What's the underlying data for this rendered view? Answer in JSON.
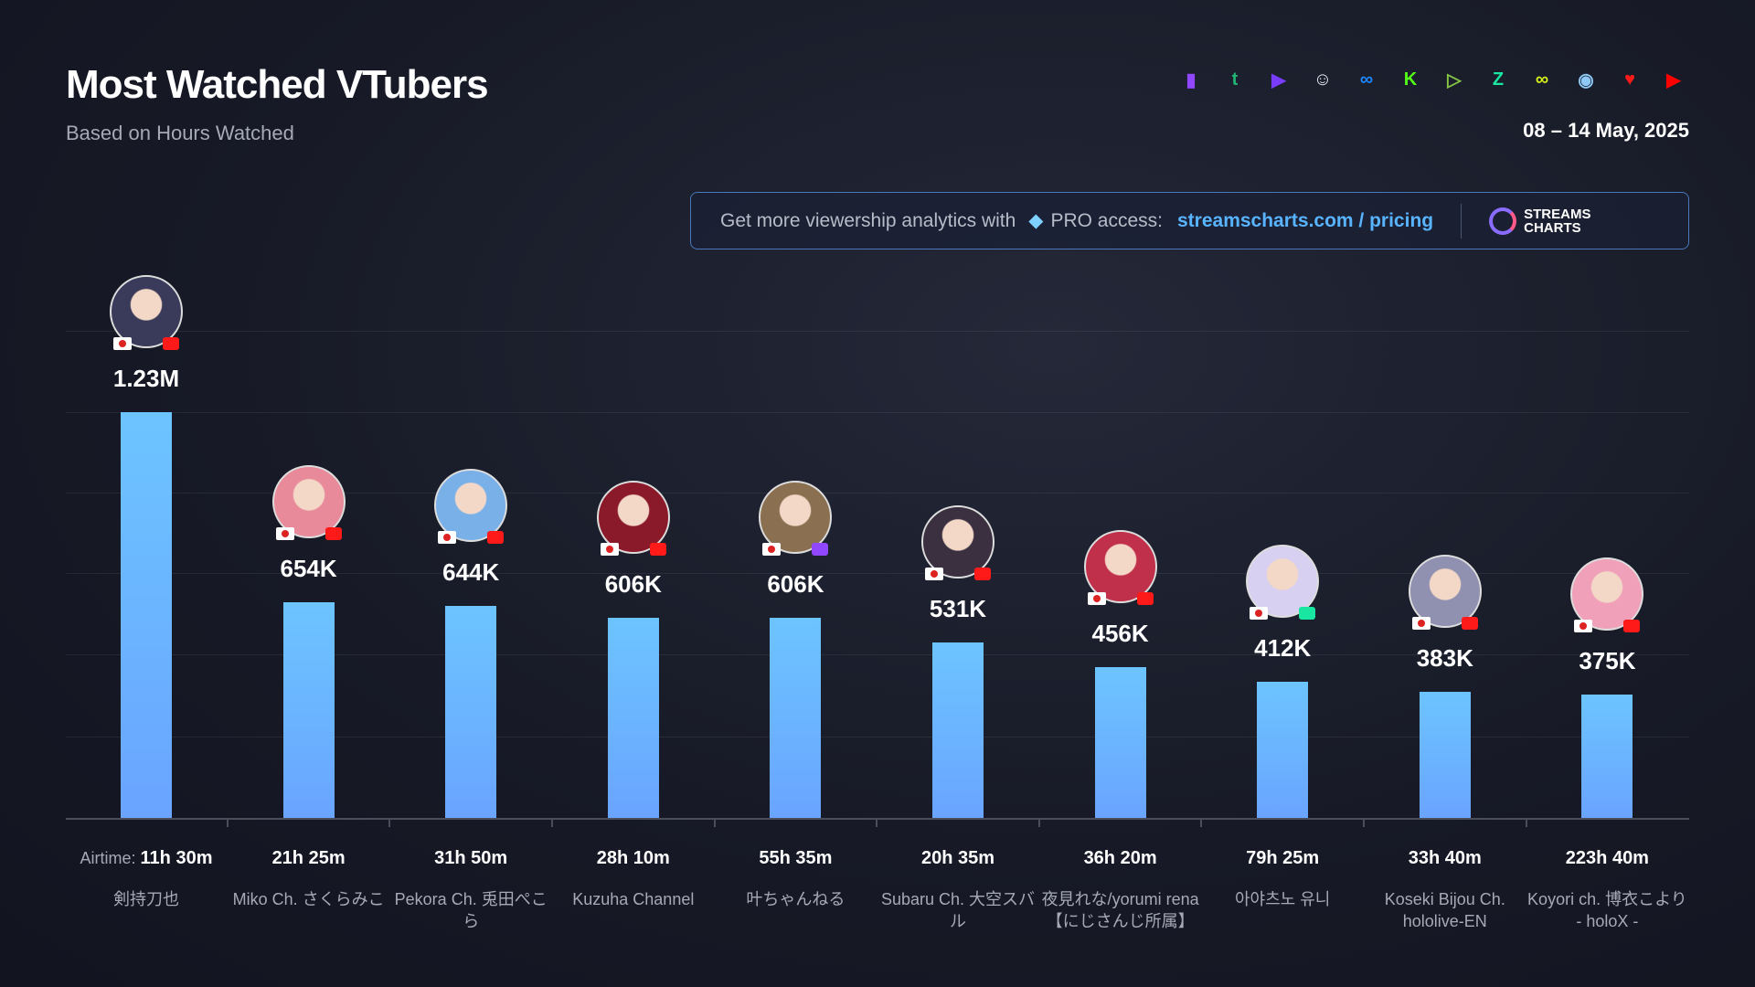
{
  "header": {
    "title": "Most Watched VTubers",
    "subtitle": "Based on Hours Watched",
    "date": "08 – 14 May, 2025"
  },
  "platforms": [
    {
      "name": "twitch",
      "color": "#9146ff",
      "glyph": "▮"
    },
    {
      "name": "trovo",
      "color": "#22b573",
      "glyph": "t"
    },
    {
      "name": "vk-play",
      "color": "#7a3cff",
      "glyph": "▶"
    },
    {
      "name": "bigo",
      "color": "#e8eef5",
      "glyph": "☺"
    },
    {
      "name": "afreeca",
      "color": "#1e88ff",
      "glyph": "∞"
    },
    {
      "name": "kick",
      "color": "#53fc18",
      "glyph": "K"
    },
    {
      "name": "rumble",
      "color": "#85c742",
      "glyph": "▷"
    },
    {
      "name": "zhanqi",
      "color": "#19e6a0",
      "glyph": "Z"
    },
    {
      "name": "chzzk",
      "color": "#d6f01a",
      "glyph": "∞"
    },
    {
      "name": "steam",
      "color": "#8ec9f5",
      "glyph": "◉"
    },
    {
      "name": "nimo",
      "color": "#ff1a1a",
      "glyph": "♥"
    },
    {
      "name": "youtube",
      "color": "#ff0000",
      "glyph": "▶"
    }
  ],
  "banner": {
    "text": "Get more viewership analytics with",
    "pro": "PRO access:",
    "link": "streamscharts.com / pricing",
    "logo": "STREAMS CHARTS"
  },
  "chart_data": {
    "type": "bar",
    "title": "Most Watched VTubers",
    "subtitle": "Based on Hours Watched",
    "ylabel": "Hours Watched",
    "ylim": [
      0,
      1500000
    ],
    "grid": true,
    "airtime_label": "Airtime:",
    "categories": [
      "剣持刀也",
      "Miko Ch. さくらみこ",
      "Pekora Ch. 兎田ぺこら",
      "Kuzuha Channel",
      "叶ちゃんねる",
      "Subaru Ch. 大空スバル",
      "夜見れな/yorumi rena【にじさんじ所属】",
      "아야츠노 유니",
      "Koseki Bijou Ch. hololive-EN",
      "Koyori ch. 博衣こより - holoX -"
    ],
    "values": [
      1230000,
      654000,
      644000,
      606000,
      606000,
      531000,
      456000,
      412000,
      383000,
      375000
    ],
    "value_labels": [
      "1.23M",
      "654K",
      "644K",
      "606K",
      "606K",
      "531K",
      "456K",
      "412K",
      "383K",
      "375K"
    ],
    "airtime": [
      "11h 30m",
      "21h 25m",
      "31h 50m",
      "28h 10m",
      "55h 35m",
      "20h 35m",
      "36h 20m",
      "79h 25m",
      "33h 40m",
      "223h 40m"
    ],
    "platform": [
      "youtube",
      "youtube",
      "youtube",
      "youtube",
      "twitch",
      "youtube",
      "youtube",
      "chzzk",
      "youtube",
      "youtube"
    ],
    "country": [
      "jp",
      "jp",
      "jp",
      "jp",
      "jp",
      "jp",
      "jp",
      "kr",
      "jp",
      "jp"
    ],
    "avatar_colors": [
      "#3a3a5a",
      "#e88a9a",
      "#7ab0e8",
      "#8a1a2a",
      "#8a7050",
      "#3a3040",
      "#c0304a",
      "#d8d0f0",
      "#9090b0",
      "#f0a0b8"
    ],
    "bar_color": "#6cb8ff"
  }
}
